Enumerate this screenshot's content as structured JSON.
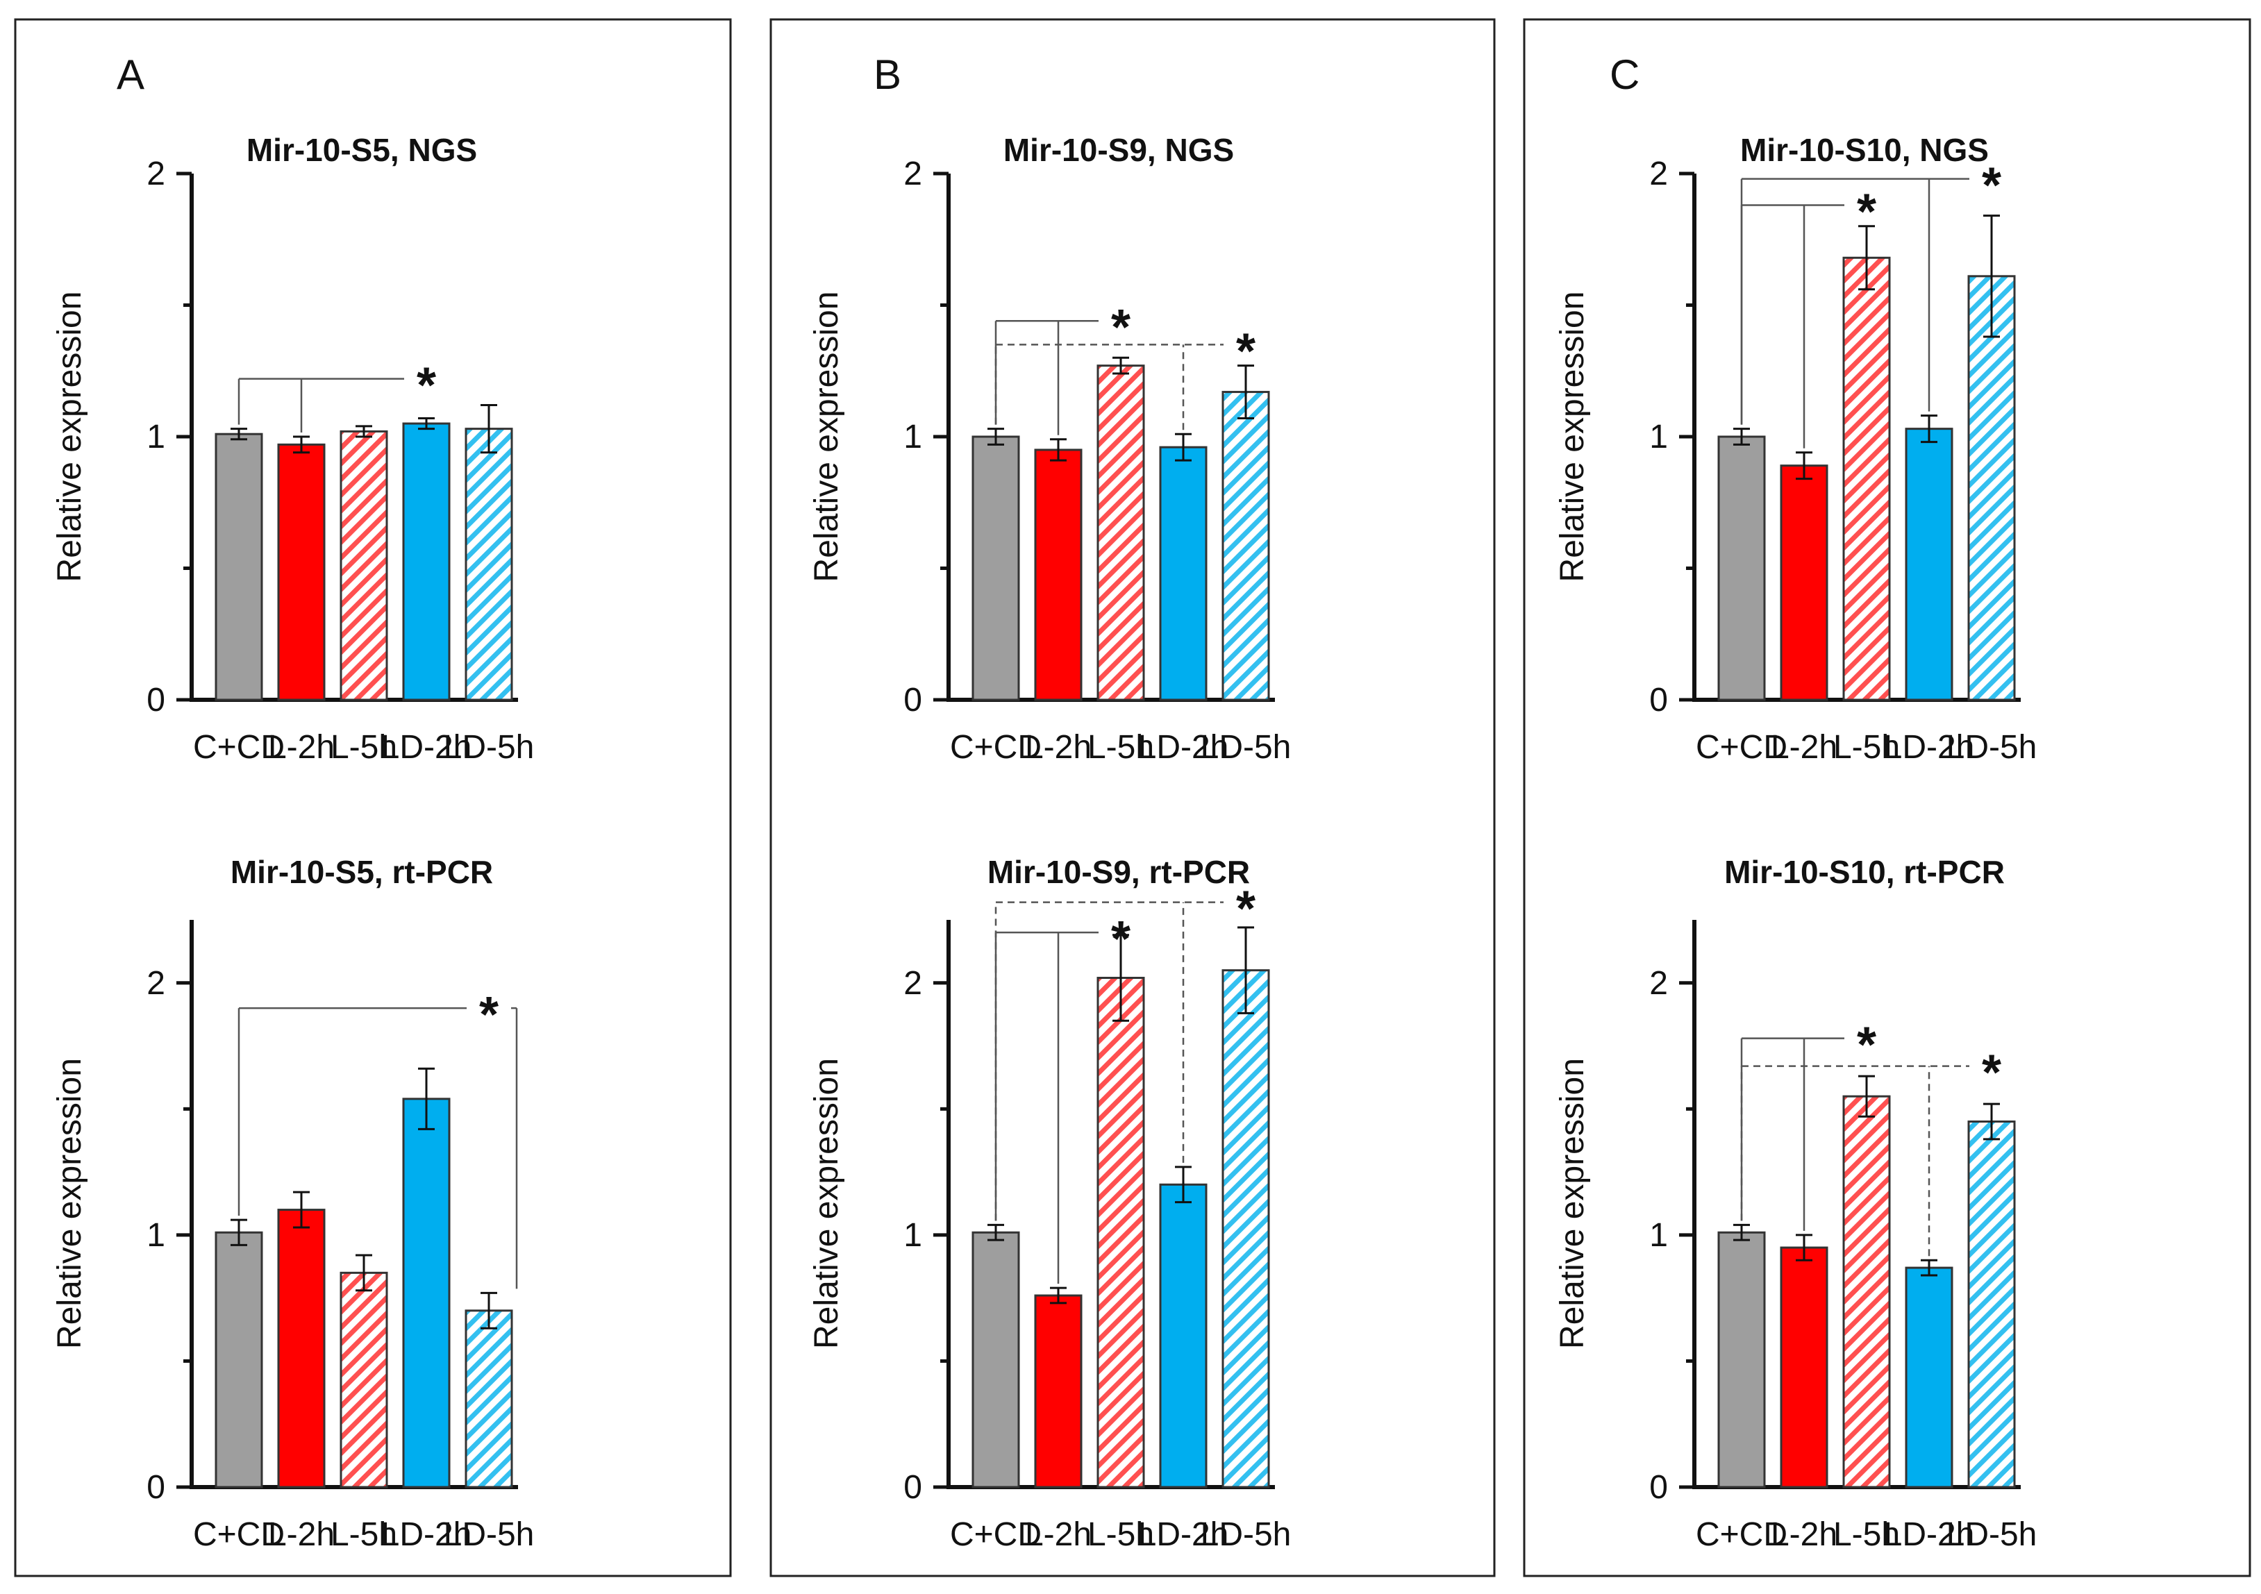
{
  "figure": {
    "panels": [
      {
        "letter": "A"
      },
      {
        "letter": "B"
      },
      {
        "letter": "C"
      }
    ]
  },
  "colors": {
    "C+CD": "#9e9e9e",
    "L-2h": "#ff0000",
    "L-5h": "#ff5050",
    "LD-2h": "#00aeef",
    "LD-5h": "#33c0f0"
  },
  "chart_data": [
    {
      "type": "bar",
      "panel": "A",
      "title": "Mir-10-S5, NGS",
      "ylabel": "Relative expression",
      "xlabel": "",
      "categories": [
        "C+CD",
        "L-2h",
        "L-5h",
        "LD-2h",
        "LD-5h"
      ],
      "values": [
        1.01,
        0.97,
        1.02,
        1.05,
        1.03
      ],
      "errors": [
        0.02,
        0.03,
        0.02,
        0.02,
        0.09
      ],
      "hatched": [
        false,
        false,
        true,
        false,
        true
      ],
      "ylim": [
        0,
        2
      ],
      "yticks": [
        0,
        1,
        2
      ],
      "significance": [
        {
          "from": [
            0,
            1
          ],
          "to": 3,
          "style": "solid",
          "label": "*",
          "level": 1.22
        }
      ]
    },
    {
      "type": "bar",
      "panel": "B",
      "title": "Mir-10-S9, NGS",
      "ylabel": "Relative expression",
      "xlabel": "",
      "categories": [
        "C+CD",
        "L-2h",
        "L-5h",
        "LD-2h",
        "LD-5h"
      ],
      "values": [
        1.0,
        0.95,
        1.27,
        0.96,
        1.17
      ],
      "errors": [
        0.03,
        0.04,
        0.03,
        0.05,
        0.1
      ],
      "hatched": [
        false,
        false,
        true,
        false,
        true
      ],
      "ylim": [
        0,
        2
      ],
      "yticks": [
        0,
        1,
        2
      ],
      "significance": [
        {
          "from": [
            0,
            1
          ],
          "to": 2,
          "style": "solid",
          "label": "*",
          "level": 1.44
        },
        {
          "from": [
            0,
            3
          ],
          "to": 4,
          "style": "dashed",
          "label": "*",
          "level": 1.35
        }
      ]
    },
    {
      "type": "bar",
      "panel": "C",
      "title": "Mir-10-S10, NGS",
      "ylabel": "Relative expression",
      "xlabel": "",
      "categories": [
        "C+CD",
        "L-2h",
        "L-5h",
        "LD-2h",
        "LD-5h"
      ],
      "values": [
        1.0,
        0.89,
        1.68,
        1.03,
        1.61
      ],
      "errors": [
        0.03,
        0.05,
        0.12,
        0.05,
        0.23
      ],
      "hatched": [
        false,
        false,
        true,
        false,
        true
      ],
      "ylim": [
        0,
        2
      ],
      "yticks": [
        0,
        1,
        2
      ],
      "significance": [
        {
          "from": [
            0,
            1
          ],
          "to": 2,
          "style": "solid",
          "label": "*",
          "level": 1.88
        },
        {
          "from": [
            0,
            3
          ],
          "to": 4,
          "style": "solid",
          "label": "*",
          "level": 1.98
        }
      ]
    },
    {
      "type": "bar",
      "panel": "A",
      "title": "Mir-10-S5, rt-PCR",
      "ylabel": "Relative expression",
      "xlabel": "",
      "categories": [
        "C+CD",
        "L-2h",
        "L-5h",
        "LD-2h",
        "LD-5h"
      ],
      "values": [
        1.01,
        1.1,
        0.85,
        1.54,
        0.7
      ],
      "errors": [
        0.05,
        0.07,
        0.07,
        0.12,
        0.07
      ],
      "hatched": [
        false,
        false,
        true,
        false,
        true
      ],
      "ylim": [
        0,
        2.25
      ],
      "yticks": [
        0,
        1,
        2
      ],
      "significance": [
        {
          "from": [
            0
          ],
          "to": 4,
          "style": "solid",
          "label": "*",
          "level": 1.9
        }
      ]
    },
    {
      "type": "bar",
      "panel": "B",
      "title": "Mir-10-S9, rt-PCR",
      "ylabel": "Relative expression",
      "xlabel": "",
      "categories": [
        "C+CD",
        "L-2h",
        "L-5h",
        "LD-2h",
        "LD-5h"
      ],
      "values": [
        1.01,
        0.76,
        2.02,
        1.2,
        2.05
      ],
      "errors": [
        0.03,
        0.03,
        0.17,
        0.07,
        0.17
      ],
      "hatched": [
        false,
        false,
        true,
        false,
        true
      ],
      "ylim": [
        0,
        2.25
      ],
      "yticks": [
        0,
        1,
        2
      ],
      "significance": [
        {
          "from": [
            0,
            1
          ],
          "to": 2,
          "style": "solid",
          "label": "*",
          "level": 2.2
        },
        {
          "from": [
            0,
            3
          ],
          "to": 4,
          "style": "dashed",
          "label": "*",
          "level": 2.32
        }
      ]
    },
    {
      "type": "bar",
      "panel": "C",
      "title": "Mir-10-S10, rt-PCR",
      "ylabel": "Relative expression",
      "xlabel": "",
      "categories": [
        "C+CD",
        "L-2h",
        "L-5h",
        "LD-2h",
        "LD-5h"
      ],
      "values": [
        1.01,
        0.95,
        1.55,
        0.87,
        1.45
      ],
      "errors": [
        0.03,
        0.05,
        0.08,
        0.03,
        0.07
      ],
      "hatched": [
        false,
        false,
        true,
        false,
        true
      ],
      "ylim": [
        0,
        2.25
      ],
      "yticks": [
        0,
        1,
        2
      ],
      "significance": [
        {
          "from": [
            0,
            1
          ],
          "to": 2,
          "style": "solid",
          "label": "*",
          "level": 1.78
        },
        {
          "from": [
            0,
            3
          ],
          "to": 4,
          "style": "dashed",
          "label": "*",
          "level": 1.67
        }
      ]
    }
  ]
}
